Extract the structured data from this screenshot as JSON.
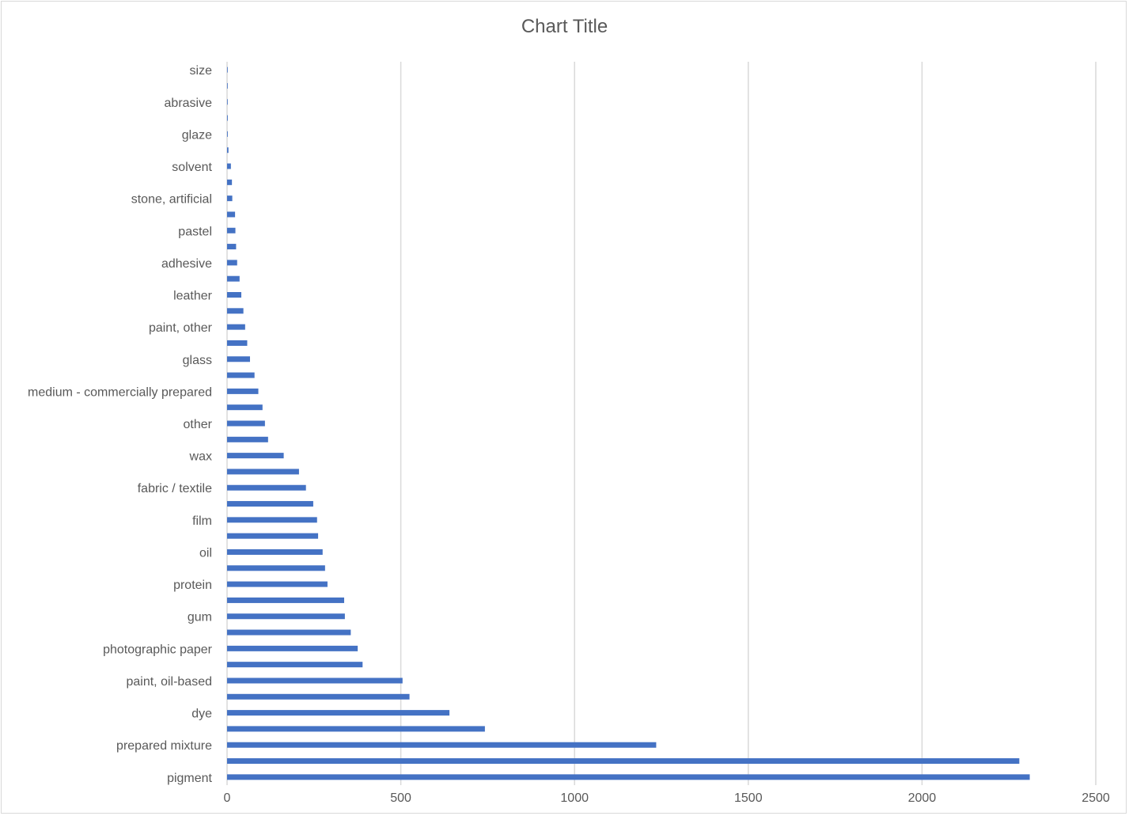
{
  "chart_data": {
    "type": "bar",
    "orientation": "horizontal",
    "title": "Chart Title",
    "xlabel": "",
    "ylabel": "",
    "xlim": [
      0,
      2500
    ],
    "xticks": [
      "0",
      "500",
      "1000",
      "1500",
      "2000",
      "2500"
    ],
    "grid": true,
    "legend": "none",
    "bar_color": "#4472c4",
    "categories": [
      "pigment",
      "",
      "prepared mixture",
      "",
      "dye",
      "",
      "paint, oil-based",
      "",
      "photographic paper",
      "",
      "gum",
      "",
      "protein",
      "",
      "oil",
      "",
      "film",
      "",
      "fabric / textile",
      "",
      "wax",
      "",
      "other",
      "",
      "medium - commercially prepared",
      "",
      "glass",
      "",
      "paint, other",
      "",
      "leather",
      "",
      "adhesive",
      "",
      "pastel",
      "",
      "stone, artificial",
      "",
      "solvent",
      "",
      "glaze",
      "",
      "abrasive",
      "",
      "size"
    ],
    "values": [
      2310,
      2280,
      1235,
      742,
      640,
      525,
      505,
      390,
      376,
      356,
      339,
      337,
      289,
      282,
      275,
      262,
      259,
      248,
      227,
      207,
      163,
      118,
      109,
      102,
      90,
      79,
      66,
      58,
      52,
      47,
      41,
      36,
      29,
      26,
      24,
      23,
      15,
      14,
      11,
      4,
      2,
      2,
      1,
      1,
      1
    ]
  }
}
